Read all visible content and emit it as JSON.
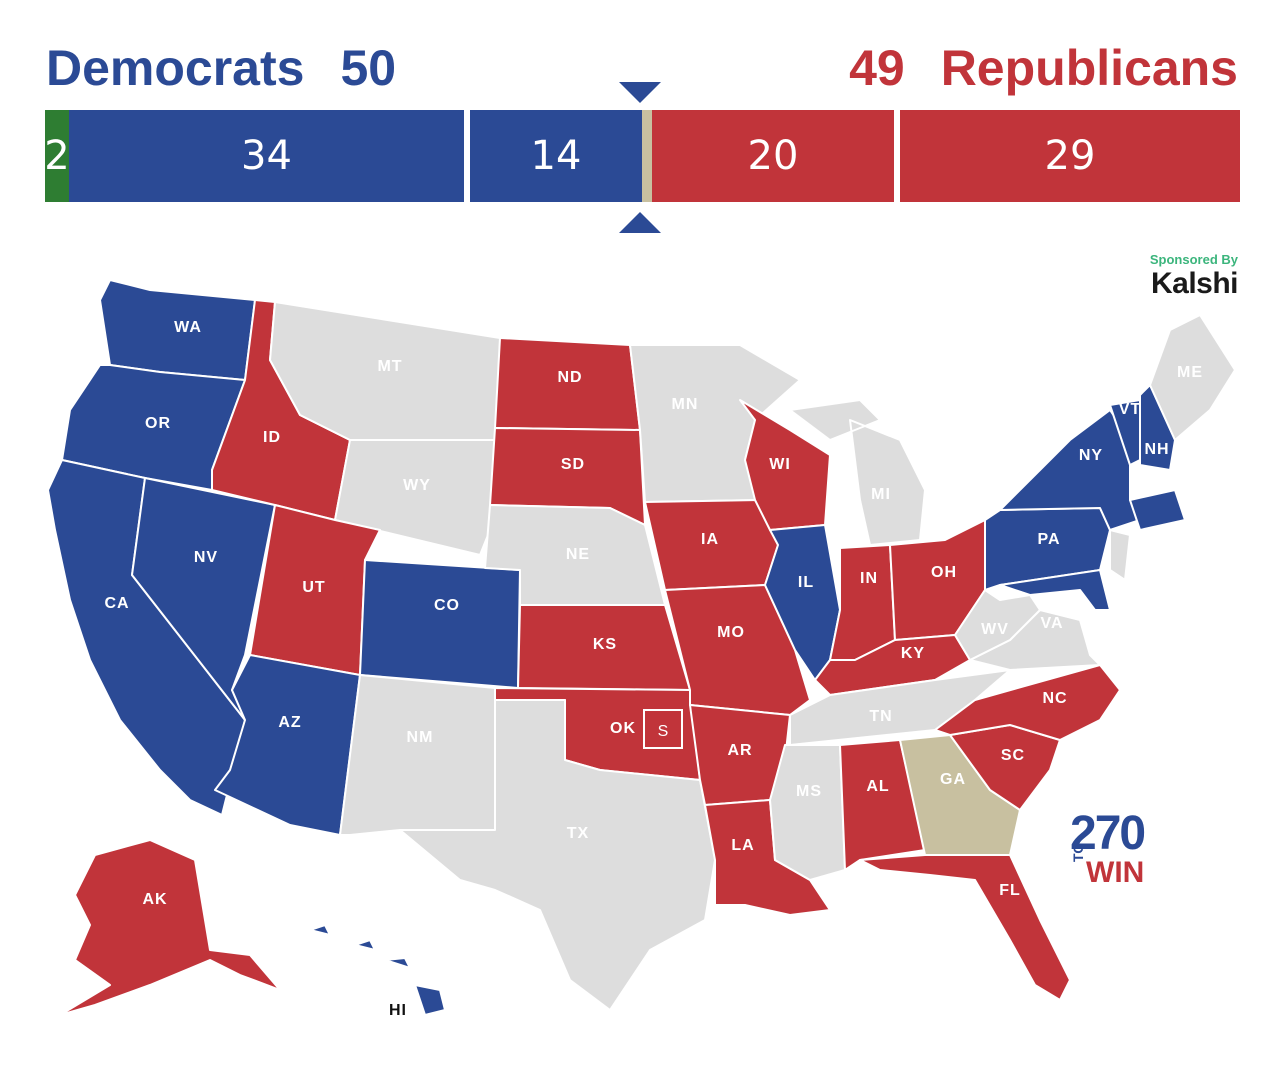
{
  "header": {
    "dem_label": "Democrats",
    "dem_total": "50",
    "rep_total": "49",
    "rep_label": "Republicans"
  },
  "bar": [
    {
      "value": 2,
      "label": "2",
      "color": "#2e7d32"
    },
    {
      "value": 34,
      "label": "34",
      "color": "#2b4a95"
    },
    {
      "value": 14,
      "label": "14",
      "color": "#2b4a95"
    },
    {
      "value": 1,
      "label": "",
      "color": "#c8c0a0"
    },
    {
      "value": 20,
      "label": "20",
      "color": "#c1343a"
    },
    {
      "value": 29,
      "label": "29",
      "color": "#c1343a"
    }
  ],
  "sponsor": {
    "line1": "Sponsored By",
    "line2": "Kalshi"
  },
  "logo": {
    "number": "270",
    "to": "TO",
    "win": "WIN"
  },
  "colors": {
    "dem": "#2b4a95",
    "rep": "#c1343a",
    "tossup": "#c8c0a0",
    "none": "#dddddd",
    "independent": "#2e7d32"
  },
  "states": [
    {
      "abbr": "WA",
      "party": "dem"
    },
    {
      "abbr": "OR",
      "party": "dem"
    },
    {
      "abbr": "CA",
      "party": "dem"
    },
    {
      "abbr": "NV",
      "party": "dem"
    },
    {
      "abbr": "ID",
      "party": "rep"
    },
    {
      "abbr": "MT",
      "party": "none"
    },
    {
      "abbr": "WY",
      "party": "none"
    },
    {
      "abbr": "UT",
      "party": "rep"
    },
    {
      "abbr": "AZ",
      "party": "dem"
    },
    {
      "abbr": "CO",
      "party": "dem"
    },
    {
      "abbr": "NM",
      "party": "none"
    },
    {
      "abbr": "ND",
      "party": "rep"
    },
    {
      "abbr": "SD",
      "party": "rep"
    },
    {
      "abbr": "NE",
      "party": "none"
    },
    {
      "abbr": "KS",
      "party": "rep"
    },
    {
      "abbr": "OK",
      "party": "rep"
    },
    {
      "abbr": "TX",
      "party": "none"
    },
    {
      "abbr": "MN",
      "party": "none"
    },
    {
      "abbr": "IA",
      "party": "rep"
    },
    {
      "abbr": "MO",
      "party": "rep"
    },
    {
      "abbr": "AR",
      "party": "rep"
    },
    {
      "abbr": "LA",
      "party": "rep"
    },
    {
      "abbr": "WI",
      "party": "rep"
    },
    {
      "abbr": "IL",
      "party": "dem"
    },
    {
      "abbr": "MI",
      "party": "none"
    },
    {
      "abbr": "IN",
      "party": "rep"
    },
    {
      "abbr": "OH",
      "party": "rep"
    },
    {
      "abbr": "KY",
      "party": "rep"
    },
    {
      "abbr": "TN",
      "party": "none"
    },
    {
      "abbr": "MS",
      "party": "none"
    },
    {
      "abbr": "AL",
      "party": "rep"
    },
    {
      "abbr": "GA",
      "party": "tossup"
    },
    {
      "abbr": "FL",
      "party": "rep"
    },
    {
      "abbr": "SC",
      "party": "rep"
    },
    {
      "abbr": "NC",
      "party": "rep"
    },
    {
      "abbr": "VA",
      "party": "none"
    },
    {
      "abbr": "WV",
      "party": "none"
    },
    {
      "abbr": "PA",
      "party": "dem"
    },
    {
      "abbr": "NY",
      "party": "dem"
    },
    {
      "abbr": "VT",
      "party": "dem"
    },
    {
      "abbr": "NH",
      "party": "dem"
    },
    {
      "abbr": "ME",
      "party": "none"
    },
    {
      "abbr": "AK",
      "party": "rep"
    },
    {
      "abbr": "HI",
      "party": "dem"
    }
  ],
  "special_marker": "S"
}
